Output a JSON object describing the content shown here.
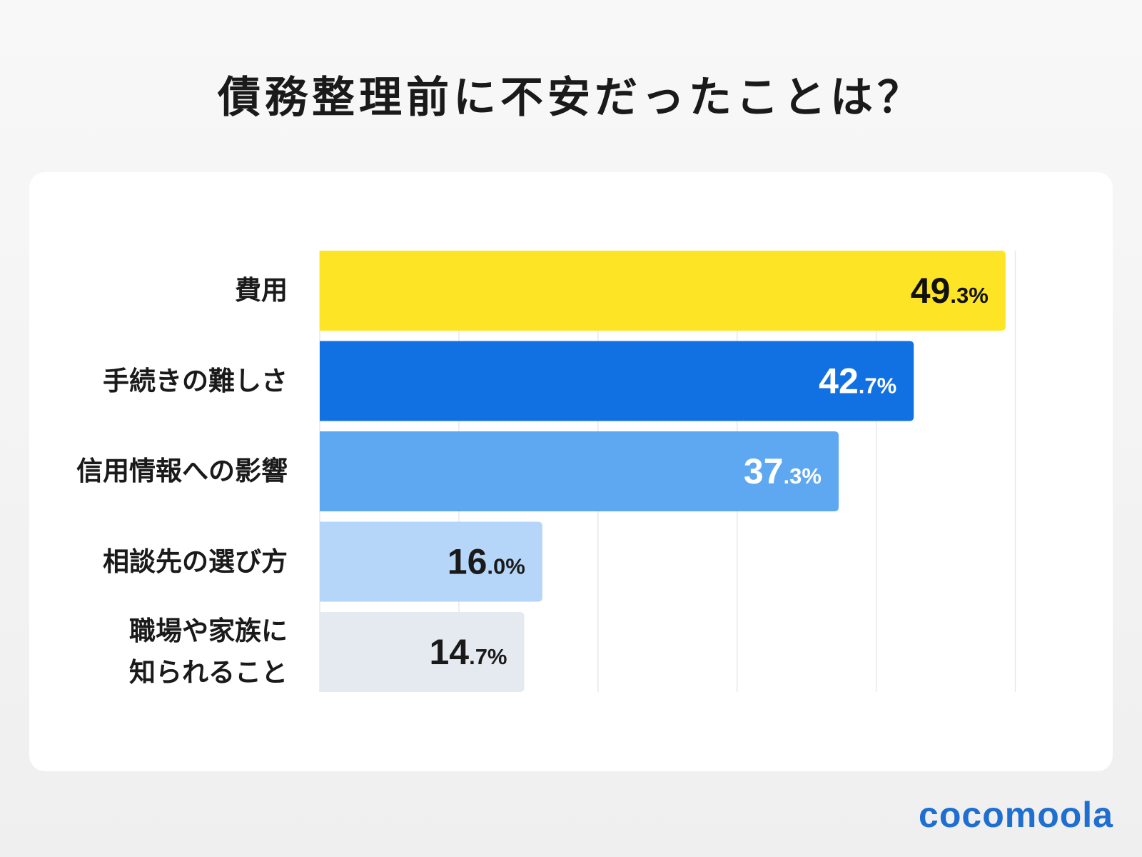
{
  "chart_data": {
    "type": "bar",
    "orientation": "horizontal",
    "title": "債務整理前に不安だったことは？",
    "categories": [
      "費用",
      "手続きの難しさ",
      "信用情報への影響",
      "相談先の選び方",
      "職場や家族に\n知られること"
    ],
    "values": [
      49.3,
      42.7,
      37.3,
      16.0,
      14.7
    ],
    "value_labels": [
      "49.3%",
      "42.7%",
      "37.3%",
      "16.0%",
      "14.7%"
    ],
    "unit": "%",
    "xlim": [
      0,
      50
    ],
    "grid": true,
    "grid_step": 10,
    "colors": [
      "#FDE425",
      "#1271E2",
      "#5DA8F0",
      "#B5D6F8",
      "#E5EAF0"
    ],
    "label_colors": [
      "#111111",
      "#FFFFFF",
      "#FFFFFF",
      "#1a1a1a",
      "#1a1a1a"
    ]
  },
  "brand": {
    "logo": "cocomoola",
    "color": "#1E6FD0"
  }
}
